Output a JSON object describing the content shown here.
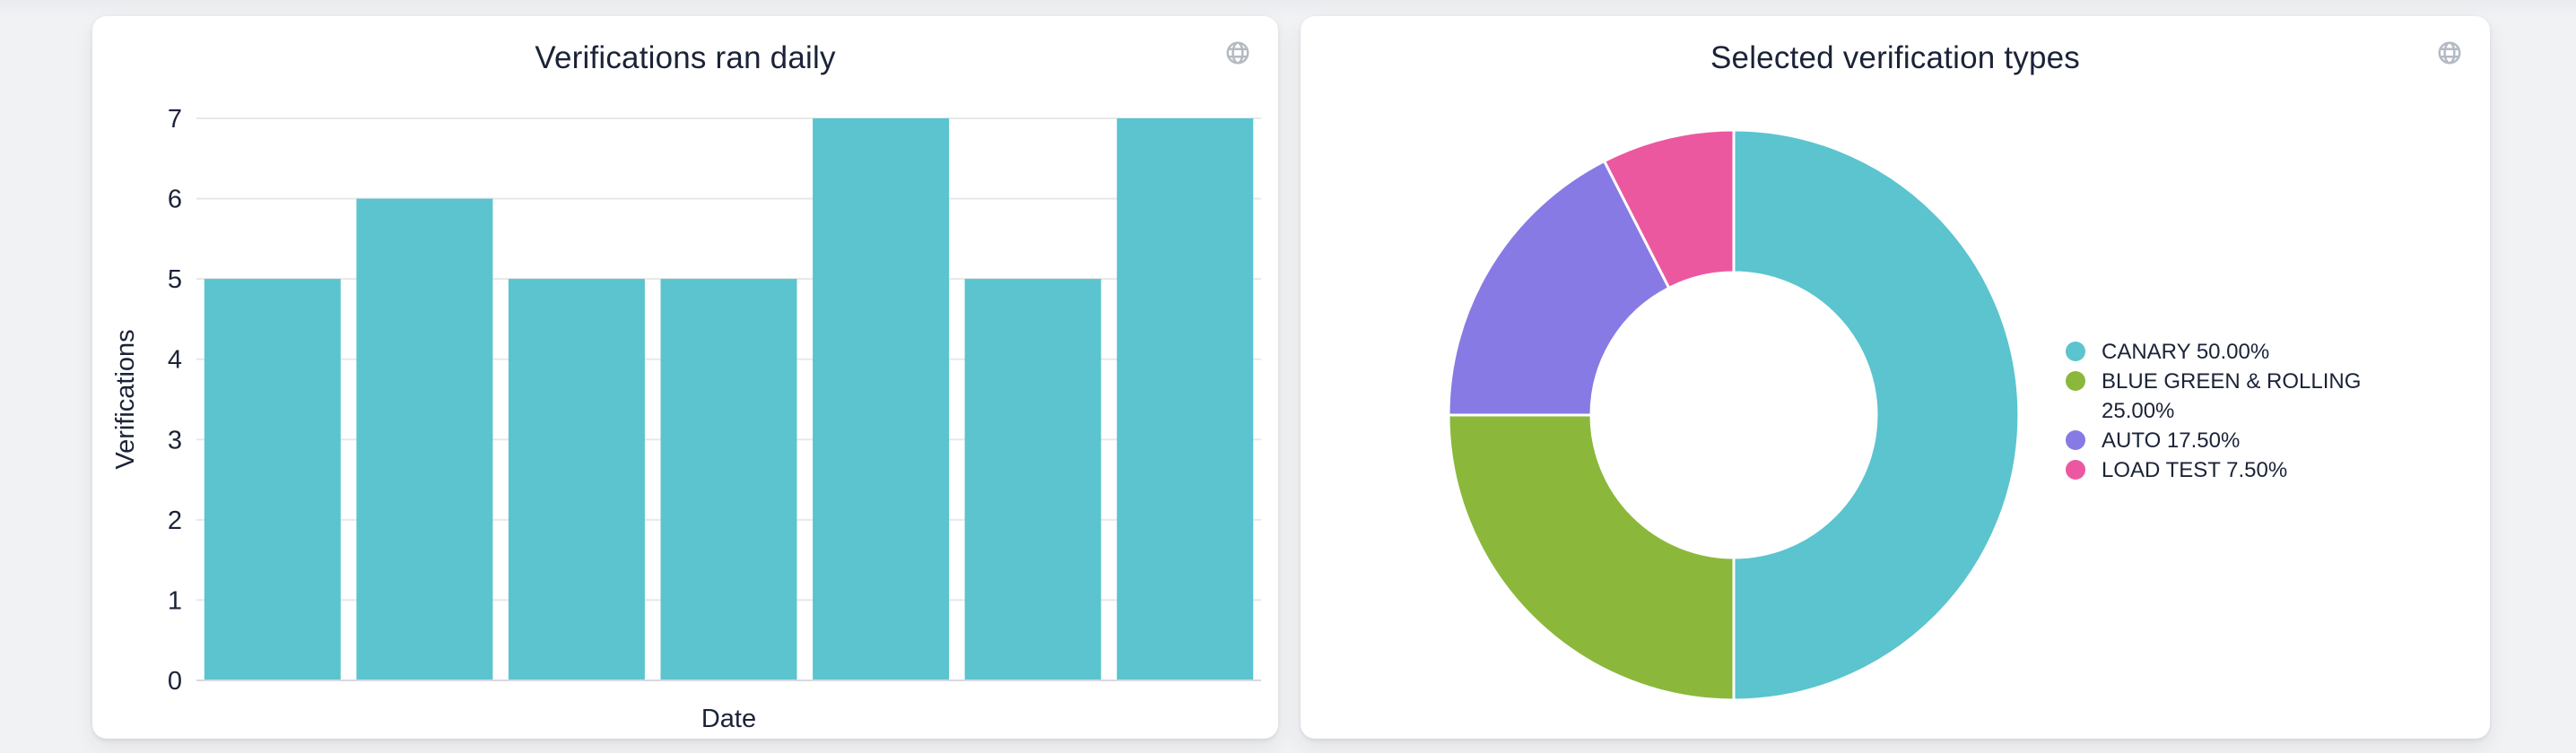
{
  "page": {
    "background_color": "#f1f2f4",
    "card_color": "#ffffff",
    "text_color": "#1b2337",
    "grid_color": "#e7e8ea",
    "baseline_color": "#d7dae2",
    "icon_color": "#b4bac3"
  },
  "cards": {
    "daily": {
      "title": "Verifications ran daily",
      "icon": "globe"
    },
    "types": {
      "title": "Selected verification types",
      "icon": "globe"
    }
  },
  "chart_data": [
    {
      "type": "bar",
      "title": "Verifications ran daily",
      "xlabel": "Date",
      "ylabel": "Verifications",
      "x_tick_labels": [],
      "values": [
        5,
        6,
        5,
        5,
        7,
        5,
        7
      ],
      "ylim": [
        0,
        7
      ],
      "yticks": [
        0,
        1,
        2,
        3,
        4,
        5,
        6,
        7
      ],
      "bar_color": "#5BC4CE",
      "grid": true,
      "legend": "none"
    },
    {
      "type": "donut",
      "title": "Selected verification types",
      "inner_radius_ratio": 0.5,
      "start_angle": "top",
      "direction": "clockwise",
      "legend_position": "right",
      "slices": [
        {
          "label": "CANARY",
          "pct": 50.0,
          "color": "#5BC4CE",
          "legend_text": "CANARY 50.00%"
        },
        {
          "label": "BLUE GREEN & ROLLING",
          "pct": 25.0,
          "color": "#8BB83B",
          "legend_text": "BLUE GREEN & ROLLING 25.00%"
        },
        {
          "label": "AUTO",
          "pct": 17.5,
          "color": "#877AE4",
          "legend_text": "AUTO 17.50%"
        },
        {
          "label": "LOAD TEST",
          "pct": 7.5,
          "color": "#EC58A0",
          "legend_text": "LOAD TEST 7.50%"
        }
      ]
    }
  ]
}
